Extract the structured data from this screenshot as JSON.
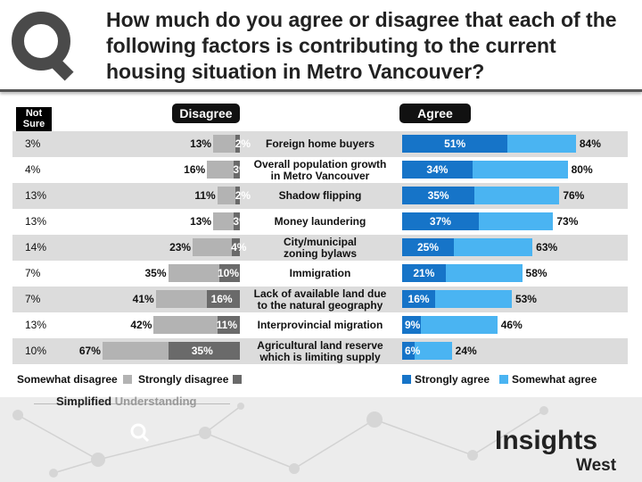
{
  "title": "How much do you agree or disagree that each of the following factors is contributing to the current housing situation in Metro Vancouver?",
  "headers": {
    "not_sure": "Not Sure",
    "disagree": "Disagree",
    "agree": "Agree"
  },
  "colors": {
    "strongly_agree": "#1674c8",
    "somewhat_agree": "#4ab4f2",
    "somewhat_disagree": "#b3b3b3",
    "strongly_disagree": "#6a6a6a",
    "shade": "#dcdcdc"
  },
  "chart_data": {
    "type": "bar",
    "title": "How much do you agree or disagree that each of the following factors is contributing to the current housing situation in Metro Vancouver?",
    "unit": "%",
    "categories": [
      "Foreign home buyers",
      "Overall population growth in Metro Vancouver",
      "Shadow flipping",
      "Money laundering",
      "City/municipal zoning bylaws",
      "Immigration",
      "Lack of available land due to the natural geography",
      "Interprovincial migration",
      "Agricultural land reserve which is limiting supply"
    ],
    "category_lines": [
      [
        "Foreign home buyers"
      ],
      [
        "Overall population growth",
        "in Metro Vancouver"
      ],
      [
        "Shadow flipping"
      ],
      [
        "Money laundering"
      ],
      [
        "City/municipal",
        "zoning bylaws"
      ],
      [
        "Immigration"
      ],
      [
        "Lack of available land due",
        "to the natural geography"
      ],
      [
        "Interprovincial migration"
      ],
      [
        "Agricultural land reserve",
        "which is limiting supply"
      ]
    ],
    "series": [
      {
        "name": "Strongly agree",
        "values": [
          51,
          34,
          35,
          37,
          25,
          21,
          16,
          9,
          6
        ]
      },
      {
        "name": "Total agree",
        "values": [
          84,
          80,
          76,
          73,
          63,
          58,
          53,
          46,
          24
        ]
      },
      {
        "name": "Strongly disagree",
        "values": [
          2,
          3,
          2,
          3,
          4,
          10,
          16,
          11,
          35
        ]
      },
      {
        "name": "Total disagree",
        "values": [
          13,
          16,
          11,
          13,
          23,
          35,
          41,
          42,
          67
        ]
      },
      {
        "name": "Not sure",
        "values": [
          3,
          4,
          13,
          13,
          14,
          7,
          7,
          13,
          10
        ]
      }
    ],
    "legend_disagree": [
      "Somewhat disagree",
      "Strongly disagree"
    ],
    "legend_agree": [
      "Strongly agree",
      "Somewhat agree"
    ]
  },
  "brand": {
    "simplified": "Simplified",
    "understanding": "Understanding",
    "logo_line1": "Insights",
    "logo_line2": "West"
  }
}
